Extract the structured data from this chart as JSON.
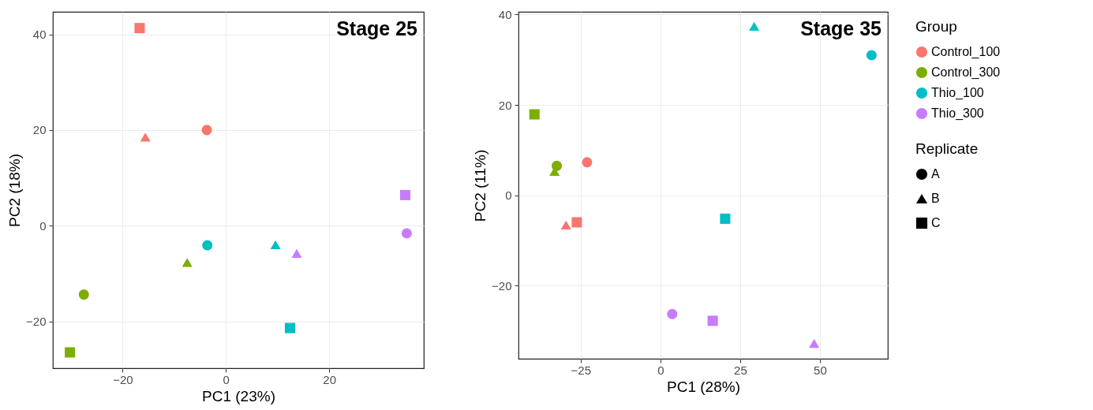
{
  "chart_data": [
    {
      "type": "scatter",
      "title": "Stage 25",
      "xlabel": "PC1 (23%)",
      "ylabel": "PC2 (18%)",
      "xlim": [
        -33.5,
        38.3
      ],
      "ylim": [
        -29.8,
        44.7
      ],
      "xticks": [
        -20,
        0,
        20
      ],
      "yticks": [
        -20,
        0,
        20,
        40
      ],
      "grid": true,
      "series": [
        {
          "color": "#f8766d",
          "marker": [
            "circle",
            "triangle",
            "square"
          ],
          "x": [
            -3.7,
            -15.6,
            -16.7
          ],
          "values": [
            20,
            18.5,
            41.3
          ]
        },
        {
          "color": "#7cae00",
          "marker": [
            "circle",
            "triangle",
            "square"
          ],
          "x": [
            -27.5,
            -7.5,
            -30.2
          ],
          "values": [
            -14.4,
            -7.7,
            -26.5
          ]
        },
        {
          "color": "#00bfc4",
          "marker": [
            "circle",
            "triangle",
            "square"
          ],
          "x": [
            -3.6,
            9.6,
            12.4
          ],
          "values": [
            -4.1,
            -4.0,
            -21.4
          ]
        },
        {
          "color": "#c77cff",
          "marker": [
            "circle",
            "triangle",
            "square"
          ],
          "x": [
            35.0,
            13.7,
            34.7
          ],
          "values": [
            -1.6,
            -5.8,
            6.4
          ]
        }
      ]
    },
    {
      "type": "scatter",
      "title": "Stage 35",
      "xlabel": "PC1 (28%)",
      "ylabel": "PC2 (11%)",
      "legend_title": [
        "Group",
        "Replicate"
      ],
      "legend": "right",
      "xlim": [
        -44.5,
        71.3
      ],
      "ylim": [
        -36.2,
        40.6
      ],
      "xticks": [
        -25,
        0,
        25,
        50
      ],
      "yticks": [
        -20,
        0,
        20,
        40
      ],
      "grid": true,
      "series": [
        {
          "name": "Control_100",
          "color": "#f8766d",
          "marker": [
            "circle",
            "triangle",
            "square"
          ],
          "x": [
            -23.0,
            -29.6,
            -26.2
          ],
          "values": [
            7.3,
            -6.6,
            -6.0
          ]
        },
        {
          "name": "Control_300",
          "color": "#7cae00",
          "marker": [
            "circle",
            "triangle",
            "square"
          ],
          "x": [
            -32.5,
            -33.2,
            -39.5
          ],
          "values": [
            6.5,
            5.3,
            17.9
          ]
        },
        {
          "name": "Thio_100",
          "color": "#00bfc4",
          "marker": [
            "circle",
            "triangle",
            "square"
          ],
          "x": [
            66.2,
            29.4,
            20.3
          ],
          "values": [
            31.0,
            37.4,
            -5.2
          ]
        },
        {
          "name": "Thio_300",
          "color": "#c77cff",
          "marker": [
            "circle",
            "triangle",
            "square"
          ],
          "x": [
            3.7,
            48.2,
            16.4
          ],
          "values": [
            -26.3,
            -32.8,
            -27.8
          ]
        },
        {
          "name": "A",
          "color": "#000000",
          "marker": "circle"
        },
        {
          "name": "B",
          "color": "#000000",
          "marker": "triangle"
        },
        {
          "name": "C",
          "color": "#000000",
          "marker": "square"
        }
      ]
    }
  ]
}
